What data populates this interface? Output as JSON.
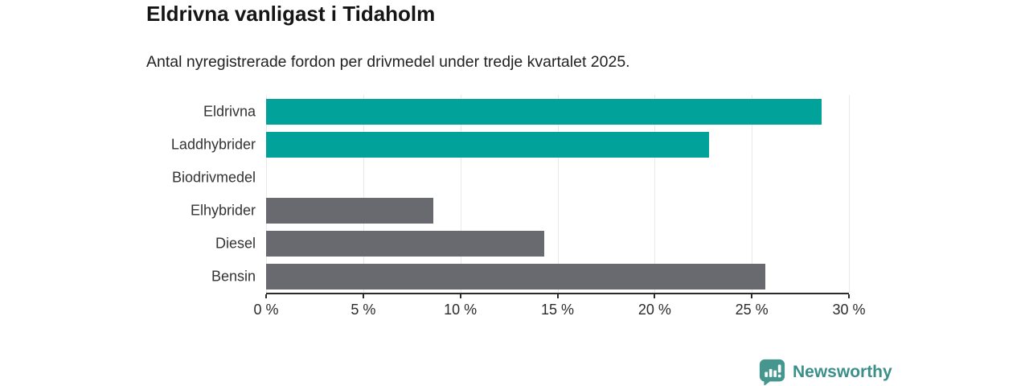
{
  "chart_data": {
    "type": "bar",
    "orientation": "horizontal",
    "title": "Eldrivna vanligast i Tidaholm",
    "subtitle": "Antal nyregistrerade fordon per drivmedel under tredje kvartalet 2025.",
    "categories": [
      "Eldrivna",
      "Laddhybrider",
      "Biodrivmedel",
      "Elhybrider",
      "Diesel",
      "Bensin"
    ],
    "values": [
      28.6,
      22.8,
      0,
      8.6,
      14.3,
      25.7
    ],
    "unit": "%",
    "xlabel": "",
    "ylabel": "",
    "xlim": [
      0,
      30
    ],
    "x_tick_labels": [
      "0 %",
      "5 %",
      "10 %",
      "15 %",
      "20 %",
      "25 %",
      "30 %"
    ],
    "bar_colors": [
      "#00a29a",
      "#00a29a",
      "#00a29a",
      "#696970",
      "#696970",
      "#696970"
    ],
    "grid": "vertical",
    "legend": "none",
    "colors": {
      "teal_series": "#00a29a",
      "gray_series": "#696970",
      "gridline": "#e9e9e9",
      "axis": "#2b2b2b"
    }
  },
  "branding": {
    "logo_text": "Newsworthy",
    "logo_color": "#3a8f8a",
    "logo_icon": "speech-bubble-bar-chart-exclamation"
  }
}
